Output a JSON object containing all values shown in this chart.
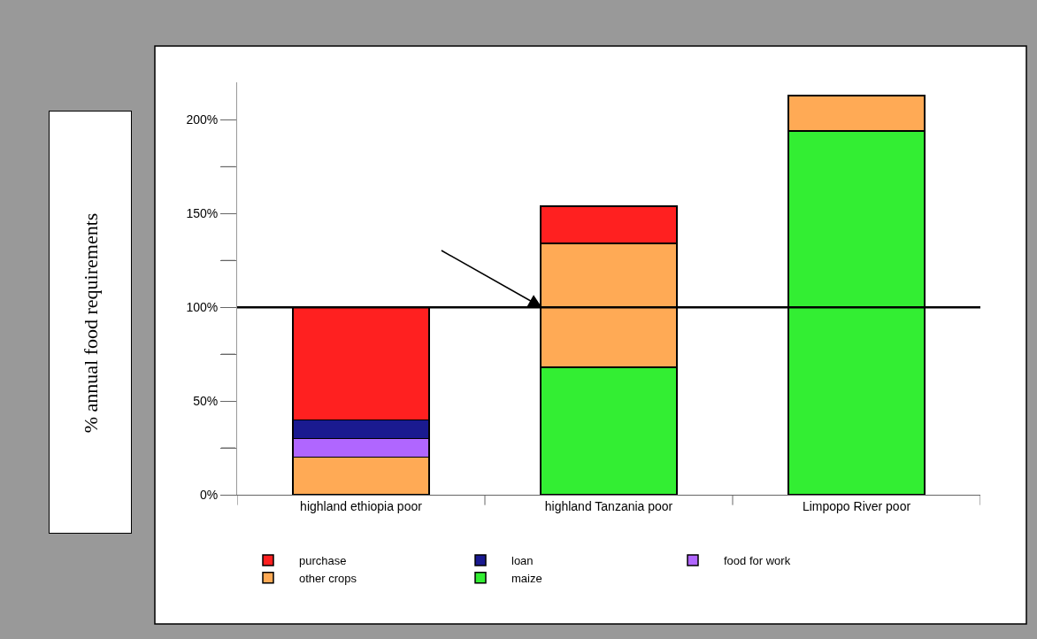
{
  "chart_data": {
    "type": "bar",
    "stacked": true,
    "ylabel": "% annual food requirements",
    "categories": [
      "highland ethiopia poor",
      "highland Tanzania poor",
      "Limpopo River poor"
    ],
    "series": [
      {
        "name": "maize",
        "color": "#33ee33",
        "values": [
          null,
          68,
          194
        ]
      },
      {
        "name": "other crops",
        "color": "#ffaa55",
        "values": [
          20,
          66,
          19
        ]
      },
      {
        "name": "food for work",
        "color": "#b066ff",
        "values": [
          10,
          null,
          null
        ]
      },
      {
        "name": "loan",
        "color": "#1a1a90",
        "values": [
          10,
          null,
          null
        ]
      },
      {
        "name": "purchase",
        "color": "#ff2020",
        "values": [
          60,
          20,
          null
        ]
      }
    ],
    "ylim": [
      0,
      220
    ],
    "yticks": [
      {
        "value": 0,
        "label": "0%"
      },
      {
        "value": 25,
        "label": null
      },
      {
        "value": 50,
        "label": "50%"
      },
      {
        "value": 75,
        "label": null
      },
      {
        "value": 100,
        "label": "100%"
      },
      {
        "value": 125,
        "label": null
      },
      {
        "value": 150,
        "label": "150%"
      },
      {
        "value": 175,
        "label": null
      },
      {
        "value": 200,
        "label": "200%"
      }
    ],
    "ref_lines": [
      {
        "axis": "y",
        "value": 100,
        "color": "#000000"
      }
    ],
    "grid": false,
    "legend": "bottom"
  }
}
